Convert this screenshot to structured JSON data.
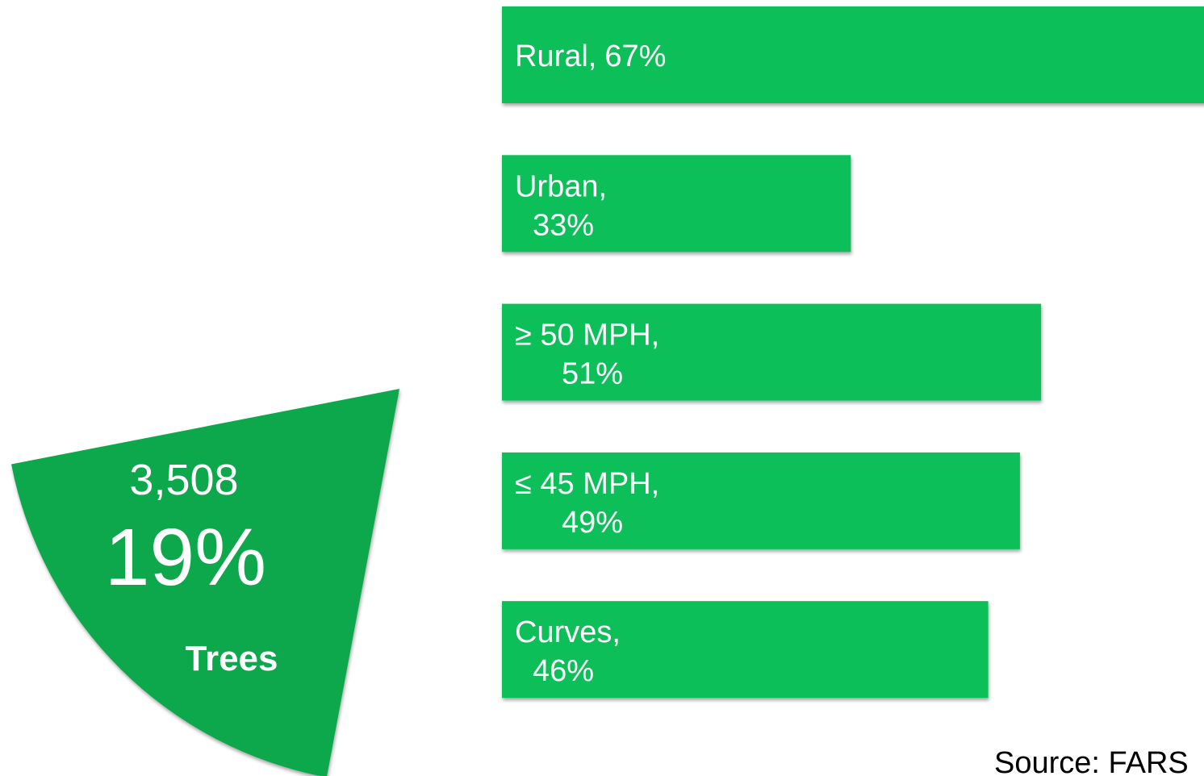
{
  "chart_data": [
    {
      "type": "pie",
      "categories": [
        "Trees"
      ],
      "values": [
        19
      ],
      "value_labels": [
        "19%"
      ],
      "annotation": "3,508",
      "color": "#0aa84c"
    },
    {
      "type": "bar",
      "orientation": "horizontal",
      "categories": [
        "Rural,",
        "Urban,",
        "≥ 50 MPH,",
        "≤ 45 MPH,",
        "Curves,"
      ],
      "values": [
        67,
        33,
        51,
        49,
        46
      ],
      "value_labels": [
        "67%",
        "33%",
        "51%",
        "49%",
        "46%"
      ],
      "color": "#0abf58"
    }
  ],
  "source": "Source: FARS"
}
